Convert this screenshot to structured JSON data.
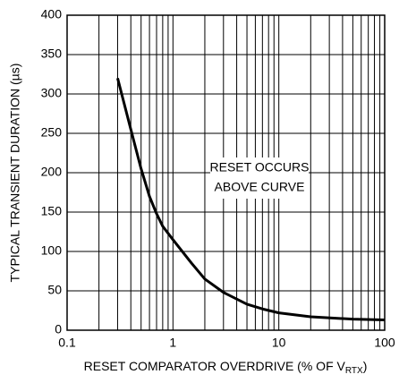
{
  "chart_data": {
    "type": "line",
    "x_label": "RESET COMPARATOR OVERDRIVE (% OF V",
    "x_label_sub": "RTX",
    "x_label_end": ")",
    "y_label": "TYPICAL TRANSIENT DURATION (µs)",
    "annotation": [
      "RESET OCCURS",
      "ABOVE CURVE"
    ],
    "x": [
      0.3,
      0.4,
      0.5,
      0.6,
      0.7,
      0.8,
      1,
      1.5,
      2,
      3,
      5,
      7,
      10,
      20,
      50,
      100
    ],
    "series": [
      {
        "color": "#000000",
        "values": [
          320,
          255,
          205,
          170,
          148,
          132,
          115,
          85,
          65,
          48,
          33,
          27,
          22,
          17,
          14,
          13
        ]
      }
    ],
    "xlim": [
      0.1,
      100
    ],
    "xticks": [
      0.1,
      1,
      10,
      100
    ],
    "ylim": [
      0,
      400
    ],
    "yticks": [
      0,
      50,
      100,
      150,
      200,
      250,
      300,
      350,
      400
    ],
    "xlog": true,
    "grid": true
  }
}
